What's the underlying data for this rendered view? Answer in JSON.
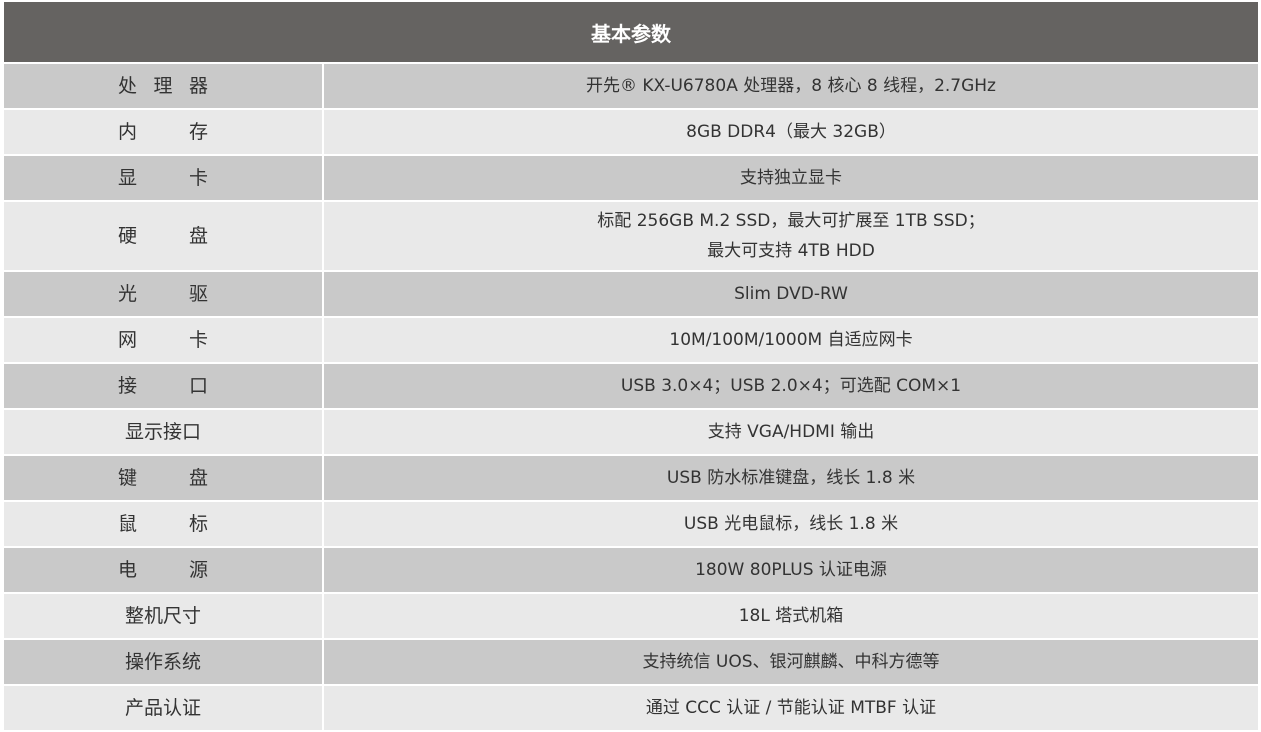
{
  "header": {
    "title": "基本参数"
  },
  "rows": [
    {
      "label": [
        "处",
        "理",
        "器"
      ],
      "value": [
        "开先® KX-U6780A 处理器，8 核心 8 线程，2.7GHz"
      ]
    },
    {
      "label": [
        "内",
        "存"
      ],
      "value": [
        "8GB DDR4（最大 32GB）"
      ]
    },
    {
      "label": [
        "显",
        "卡"
      ],
      "value": [
        "支持独立显卡"
      ]
    },
    {
      "label": [
        "硬",
        "盘"
      ],
      "value": [
        "标配 256GB M.2 SSD，最大可扩展至 1TB SSD；",
        "最大可支持 4TB HDD"
      ]
    },
    {
      "label": [
        "光",
        "驱"
      ],
      "value": [
        "Slim DVD-RW"
      ]
    },
    {
      "label": [
        "网",
        "卡"
      ],
      "value": [
        "10M/100M/1000M 自适应网卡"
      ]
    },
    {
      "label": [
        "接",
        "口"
      ],
      "value": [
        "USB 3.0×4；USB 2.0×4；可选配 COM×1"
      ]
    },
    {
      "label": [
        "显示接口"
      ],
      "value": [
        "支持 VGA/HDMI 输出"
      ]
    },
    {
      "label": [
        "键",
        "盘"
      ],
      "value": [
        "USB 防水标准键盘，线长 1.8 米"
      ]
    },
    {
      "label": [
        "鼠",
        "标"
      ],
      "value": [
        "USB 光电鼠标，线长 1.8 米"
      ]
    },
    {
      "label": [
        "电",
        "源"
      ],
      "value": [
        "180W 80PLUS 认证电源"
      ]
    },
    {
      "label": [
        "整机尺寸"
      ],
      "value": [
        "18L 塔式机箱"
      ]
    },
    {
      "label": [
        "操作系统"
      ],
      "value": [
        "支持统信 UOS、银河麒麟、中科方德等"
      ]
    },
    {
      "label": [
        "产品认证"
      ],
      "value": [
        "通过 CCC 认证 / 节能认证 MTBF 认证"
      ]
    }
  ],
  "colors": {
    "header_bg": "#656361",
    "row_dark": "#c9c9c9",
    "row_light": "#e9e9e9"
  }
}
